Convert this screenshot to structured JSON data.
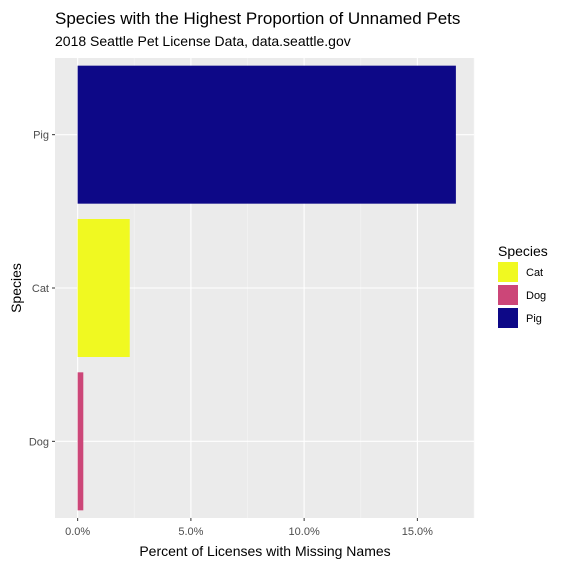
{
  "chart_data": {
    "type": "bar",
    "orientation": "horizontal",
    "title": "Species with the Highest Proportion of Unnamed Pets",
    "subtitle": "2018 Seattle Pet License Data, data.seattle.gov",
    "xlabel": "Percent of Licenses with Missing Names",
    "ylabel": "Species",
    "categories": [
      "Pig",
      "Cat",
      "Dog"
    ],
    "values": [
      16.7,
      2.3,
      0.25
    ],
    "colors": [
      "#0D0887",
      "#F0F921",
      "#CC4678"
    ],
    "xlim": [
      -1.0,
      17.5
    ],
    "xticks": [
      0,
      5,
      10,
      15
    ],
    "xtick_labels": [
      "0.0%",
      "5.0%",
      "10.0%",
      "15.0%"
    ],
    "grid": true,
    "legend": {
      "title": "Species",
      "position": "right",
      "entries": [
        {
          "label": "Cat",
          "color": "#F0F921"
        },
        {
          "label": "Dog",
          "color": "#CC4678"
        },
        {
          "label": "Pig",
          "color": "#0D0887"
        }
      ]
    },
    "background": "#EBEBEB"
  }
}
